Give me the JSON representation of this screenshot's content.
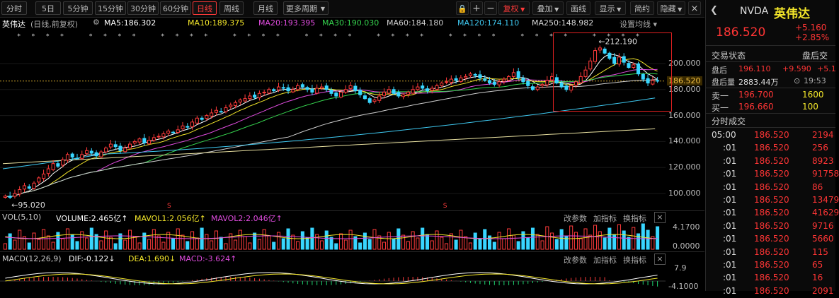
{
  "toolbar": {
    "tabs": [
      "分时",
      "5日",
      "5分钟",
      "15分钟",
      "30分钟",
      "60分钟",
      "日线",
      "周线",
      "月线",
      "更多周期"
    ],
    "active_tab": "日线",
    "right_buttons": [
      "复权",
      "叠加",
      "画线",
      "显示",
      "简约",
      "隐藏"
    ]
  },
  "legend": {
    "name": "英伟达",
    "mode": "(日线,前复权)",
    "ma": [
      {
        "label": "MA5:186.302",
        "color": "#ffffff"
      },
      {
        "label": "MA10:189.375",
        "color": "#f3e62a"
      },
      {
        "label": "MA20:193.395",
        "color": "#e14ce0"
      },
      {
        "label": "MA30:190.030",
        "color": "#35d44e"
      },
      {
        "label": "MA60:184.180",
        "color": "#cfcfcf"
      },
      {
        "label": "MA120:174.110",
        "color": "#3ec8f0"
      },
      {
        "label": "MA250:148.982",
        "color": "#d9d9d9"
      }
    ],
    "settings": "设置均线"
  },
  "chart_data": {
    "type": "candlestick",
    "y_ticks": [
      "200.000",
      "180.000",
      "160.000",
      "140.000",
      "120.000",
      "100.000"
    ],
    "current_price": "186.520",
    "high_label": "212.190",
    "low_label": "95.020",
    "closes": [
      98,
      97,
      100,
      103,
      106,
      104,
      108,
      112,
      115,
      119,
      123,
      121,
      126,
      130,
      128,
      127,
      130,
      133,
      131,
      129,
      132,
      135,
      138,
      136,
      133,
      135,
      138,
      140,
      142,
      139,
      141,
      143,
      144,
      146,
      148,
      147,
      149,
      152,
      151,
      155,
      158,
      157,
      160,
      162,
      164,
      163,
      166,
      168,
      170,
      172,
      173,
      175,
      174,
      177,
      178,
      180,
      179,
      182,
      181,
      179,
      180,
      183,
      182,
      180,
      178,
      181,
      182,
      180,
      177,
      175,
      178,
      180,
      183,
      179,
      176,
      173,
      170,
      172,
      175,
      178,
      180,
      177,
      175,
      176,
      178,
      180,
      182,
      181,
      179,
      181,
      183,
      185,
      186,
      188,
      187,
      189,
      190,
      192,
      191,
      189,
      187,
      185,
      184,
      186,
      188,
      190,
      193,
      189,
      186,
      183,
      180,
      182,
      184,
      187,
      190,
      185,
      182,
      180,
      183,
      186,
      190,
      195,
      202,
      210,
      212,
      208,
      204,
      200,
      205,
      201,
      197,
      199,
      192,
      188,
      185,
      187,
      186.5
    ]
  },
  "volume_panel": {
    "title": "VOL(5,10)",
    "volume": "VOLUME:2.465亿↑",
    "mavol1": "MAVOL1:2.056亿↑",
    "mavol2": "MAVOL2:2.046亿↑",
    "tools": [
      "改参数",
      "加指标",
      "换指标"
    ],
    "y_top": "4.1700",
    "y_bottom": "0.0000"
  },
  "macd_panel": {
    "title": "MACD(12,26,9)",
    "dif": "DIF:-0.122↓",
    "dea": "DEA:1.690↓",
    "macd": "MACD:-3.624↑",
    "tools": [
      "改参数",
      "加指标",
      "换指标"
    ],
    "y_top": "7.9",
    "y_bottom": "-4.1000"
  },
  "quote": {
    "ticker": "NVDA",
    "name": "英伟达",
    "price": "186.520",
    "change": "+5.160",
    "change_pct": "+2.85%",
    "status_label": "交易状态",
    "status_value": "盘后交",
    "after_price_label": "盘后",
    "after_price": "196.110",
    "after_change": "+9.590",
    "after_change_pct": "+5.1",
    "after_vol_label": "盘后量",
    "after_vol": "2883.44万",
    "after_time": "19:53",
    "sell1_label": "卖一",
    "sell1_price": "196.700",
    "sell1_vol": "1600",
    "buy1_label": "买一",
    "buy1_price": "196.660",
    "buy1_vol": "100",
    "trades_title": "分时成交",
    "trades": [
      {
        "time": "05:00",
        "price": "186.520",
        "vol": "2194",
        "color": "#ff3535"
      },
      {
        "time": ":01",
        "price": "186.520",
        "vol": "256",
        "color": "#ff3535"
      },
      {
        "time": ":01",
        "price": "186.520",
        "vol": "8923",
        "color": "#ff3535"
      },
      {
        "time": ":01",
        "price": "186.520",
        "vol": "91758",
        "color": "#ff3535"
      },
      {
        "time": ":01",
        "price": "186.520",
        "vol": "86",
        "color": "#ff3535"
      },
      {
        "time": ":01",
        "price": "186.520",
        "vol": "13479",
        "color": "#ff3535"
      },
      {
        "time": ":01",
        "price": "186.520",
        "vol": "41629",
        "color": "#ff3535"
      },
      {
        "time": ":01",
        "price": "186.520",
        "vol": "9716",
        "color": "#ff3535"
      },
      {
        "time": ":01",
        "price": "186.520",
        "vol": "5660",
        "color": "#ff3535"
      },
      {
        "time": ":01",
        "price": "186.520",
        "vol": "115",
        "color": "#ff3535"
      },
      {
        "time": ":01",
        "price": "186.520",
        "vol": "65",
        "color": "#ff3535"
      },
      {
        "time": ":01",
        "price": "186.520",
        "vol": "16",
        "color": "#ff3535"
      },
      {
        "time": ":01",
        "price": "186.520",
        "vol": "2091",
        "color": "#ff3535"
      }
    ]
  }
}
